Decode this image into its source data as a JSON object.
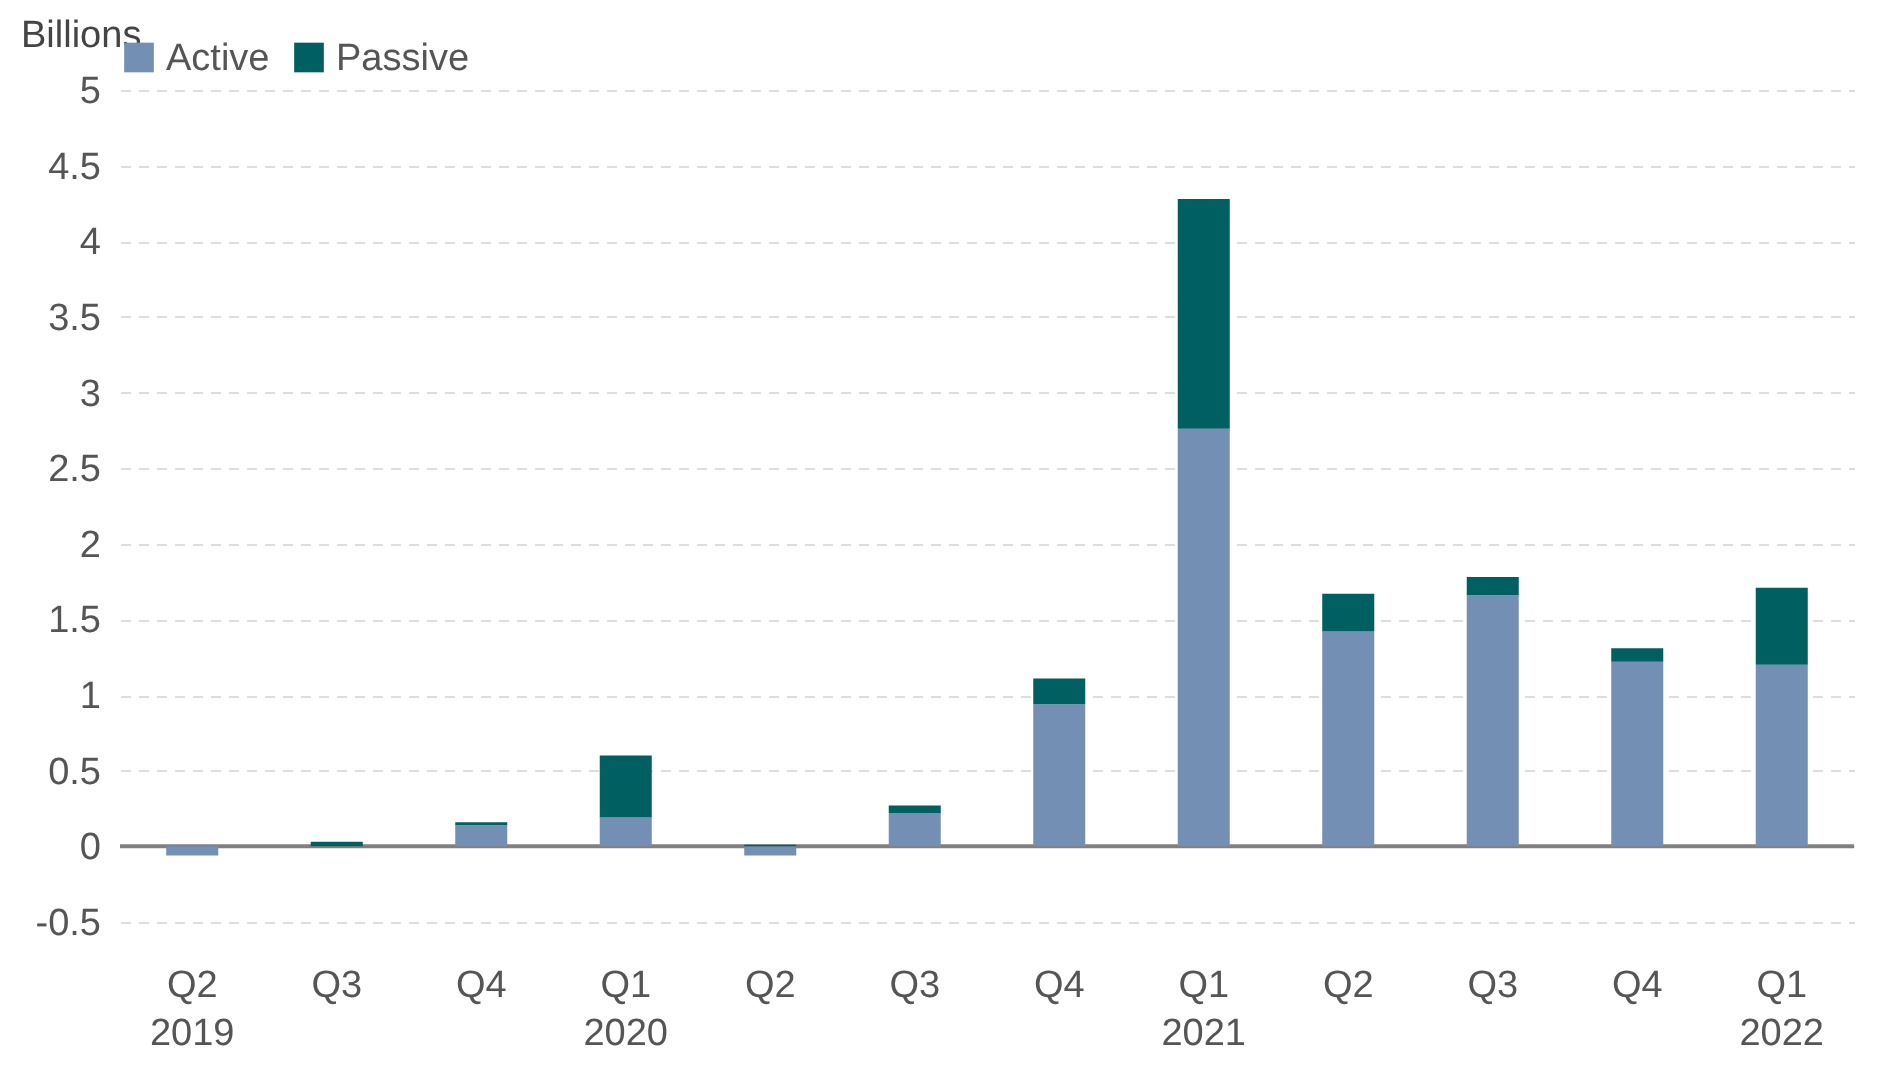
{
  "chart_data": {
    "type": "bar",
    "stacked": true,
    "ylabel": "Billions",
    "categories": [
      "Q2\n2019",
      "Q3",
      "Q4",
      "Q1\n2020",
      "Q2",
      "Q3",
      "Q4",
      "Q1\n2021",
      "Q2",
      "Q3",
      "Q4",
      "Q1\n2022"
    ],
    "series": [
      {
        "name": "Active",
        "color": "#738fb4",
        "values": [
          -0.06,
          0,
          0.14,
          0.19,
          -0.06,
          0.22,
          0.94,
          2.76,
          1.42,
          1.66,
          1.22,
          1.2
        ]
      },
      {
        "name": "Passive",
        "color": "#005f61",
        "values": [
          0,
          0.03,
          0.02,
          0.41,
          0.01,
          0.05,
          0.17,
          1.52,
          0.25,
          0.12,
          0.09,
          0.51
        ]
      }
    ],
    "ylim": [
      -0.5,
      5
    ],
    "yticks": [
      -0.5,
      0,
      0.5,
      1,
      1.5,
      2,
      2.5,
      3,
      3.5,
      4,
      4.5,
      5
    ],
    "grid": "y",
    "legend": "top left",
    "ref_lines": [
      {
        "axis": "y",
        "value": 0,
        "color": "#808080"
      }
    ]
  }
}
